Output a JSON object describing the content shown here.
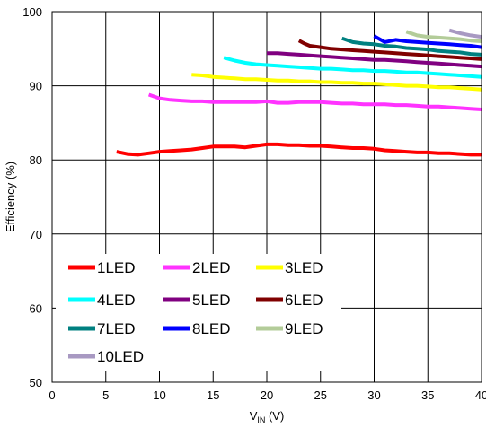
{
  "chart_data": {
    "type": "line",
    "title": "",
    "xlabel": {
      "main": "V",
      "sub": "IN",
      "unit": " (V)"
    },
    "ylabel": "Efficiency (%)",
    "xlim": [
      0,
      40
    ],
    "ylim": [
      50,
      100
    ],
    "x_ticks": [
      "0",
      "5",
      "10",
      "15",
      "20",
      "25",
      "30",
      "35",
      "40"
    ],
    "y_ticks": [
      "50",
      "60",
      "70",
      "80",
      "90",
      "100"
    ],
    "grid": true,
    "legend_position": "inside-bottom-left",
    "series": [
      {
        "name": "1LED",
        "color": "#ff0000",
        "x": [
          6,
          7,
          8,
          9,
          10,
          11,
          12,
          13,
          14,
          15,
          16,
          17,
          18,
          19,
          20,
          21,
          22,
          23,
          24,
          25,
          26,
          27,
          28,
          29,
          30,
          31,
          32,
          33,
          34,
          35,
          36,
          37,
          38,
          39,
          40
        ],
        "y": [
          81.1,
          80.8,
          80.7,
          80.9,
          81.1,
          81.2,
          81.3,
          81.4,
          81.6,
          81.8,
          81.8,
          81.8,
          81.7,
          81.9,
          82.1,
          82.1,
          82.0,
          82.0,
          81.9,
          81.9,
          81.8,
          81.7,
          81.6,
          81.6,
          81.5,
          81.3,
          81.2,
          81.1,
          81.0,
          81.0,
          80.9,
          80.9,
          80.8,
          80.7,
          80.7
        ]
      },
      {
        "name": "2LED",
        "color": "#ff33ff",
        "x": [
          9,
          10,
          11,
          12,
          13,
          14,
          15,
          16,
          17,
          18,
          19,
          20,
          21,
          22,
          23,
          24,
          25,
          26,
          27,
          28,
          29,
          30,
          31,
          32,
          33,
          34,
          35,
          36,
          37,
          38,
          39,
          40
        ],
        "y": [
          88.8,
          88.3,
          88.1,
          88.0,
          87.9,
          87.9,
          87.8,
          87.8,
          87.8,
          87.8,
          87.8,
          87.9,
          87.7,
          87.7,
          87.8,
          87.8,
          87.8,
          87.7,
          87.6,
          87.6,
          87.5,
          87.5,
          87.5,
          87.4,
          87.4,
          87.3,
          87.2,
          87.2,
          87.1,
          87.0,
          86.9,
          86.8
        ]
      },
      {
        "name": "3LED",
        "color": "#ffff00",
        "x": [
          13,
          14,
          15,
          16,
          17,
          18,
          19,
          20,
          21,
          22,
          23,
          24,
          25,
          26,
          27,
          28,
          29,
          30,
          31,
          32,
          33,
          34,
          35,
          36,
          37,
          38,
          39,
          40
        ],
        "y": [
          91.5,
          91.4,
          91.2,
          91.1,
          91.0,
          90.9,
          90.9,
          90.8,
          90.7,
          90.7,
          90.6,
          90.6,
          90.5,
          90.5,
          90.4,
          90.4,
          90.3,
          90.3,
          90.2,
          90.1,
          90.0,
          90.0,
          89.9,
          89.8,
          89.8,
          89.7,
          89.6,
          89.5
        ]
      },
      {
        "name": "4LED",
        "color": "#00ffff",
        "x": [
          16,
          17,
          18,
          19,
          20,
          21,
          22,
          23,
          24,
          25,
          26,
          27,
          28,
          29,
          30,
          31,
          32,
          33,
          34,
          35,
          36,
          37,
          38,
          39,
          40
        ],
        "y": [
          93.8,
          93.4,
          93.1,
          92.9,
          92.8,
          92.7,
          92.6,
          92.5,
          92.4,
          92.3,
          92.3,
          92.2,
          92.1,
          92.1,
          92.0,
          92.0,
          91.9,
          91.8,
          91.8,
          91.7,
          91.6,
          91.5,
          91.4,
          91.3,
          91.2
        ]
      },
      {
        "name": "5LED",
        "color": "#800080",
        "x": [
          20,
          21,
          22,
          23,
          24,
          25,
          26,
          27,
          28,
          29,
          30,
          31,
          32,
          33,
          34,
          35,
          36,
          37,
          38,
          39,
          40
        ],
        "y": [
          94.4,
          94.4,
          94.3,
          94.2,
          94.1,
          94.0,
          93.9,
          93.8,
          93.7,
          93.6,
          93.5,
          93.5,
          93.4,
          93.3,
          93.2,
          93.1,
          93.0,
          92.9,
          92.8,
          92.7,
          92.6
        ]
      },
      {
        "name": "6LED",
        "color": "#800000",
        "x": [
          23,
          23.5,
          24,
          25,
          26,
          27,
          28,
          29,
          30,
          31,
          32,
          33,
          34,
          35,
          36,
          37,
          38,
          39,
          40
        ],
        "y": [
          96.1,
          95.7,
          95.4,
          95.2,
          95.0,
          94.9,
          94.8,
          94.7,
          94.6,
          94.5,
          94.4,
          94.3,
          94.2,
          94.1,
          94.0,
          93.9,
          93.8,
          93.7,
          93.6
        ]
      },
      {
        "name": "7LED",
        "color": "#008080",
        "x": [
          27,
          28,
          29,
          30,
          31,
          32,
          33,
          34,
          35,
          36,
          37,
          38,
          39,
          40
        ],
        "y": [
          96.4,
          95.9,
          95.7,
          95.6,
          95.4,
          95.3,
          95.1,
          95.0,
          94.9,
          94.7,
          94.6,
          94.5,
          94.3,
          94.2
        ]
      },
      {
        "name": "8LED",
        "color": "#0000ff",
        "x": [
          30,
          31,
          32,
          33,
          34,
          35,
          36,
          37,
          38,
          39,
          40
        ],
        "y": [
          96.7,
          95.9,
          96.2,
          96.0,
          95.9,
          95.8,
          95.7,
          95.6,
          95.5,
          95.4,
          95.2
        ]
      },
      {
        "name": "9LED",
        "color": "#b3cc99",
        "x": [
          33,
          34,
          35,
          36,
          37,
          38,
          39,
          40
        ],
        "y": [
          97.3,
          96.8,
          96.6,
          96.5,
          96.4,
          96.3,
          96.1,
          96.0
        ]
      },
      {
        "name": "10LED",
        "color": "#a899c2",
        "x": [
          37,
          38,
          39,
          40
        ],
        "y": [
          97.5,
          97.1,
          96.8,
          96.6
        ]
      }
    ]
  }
}
